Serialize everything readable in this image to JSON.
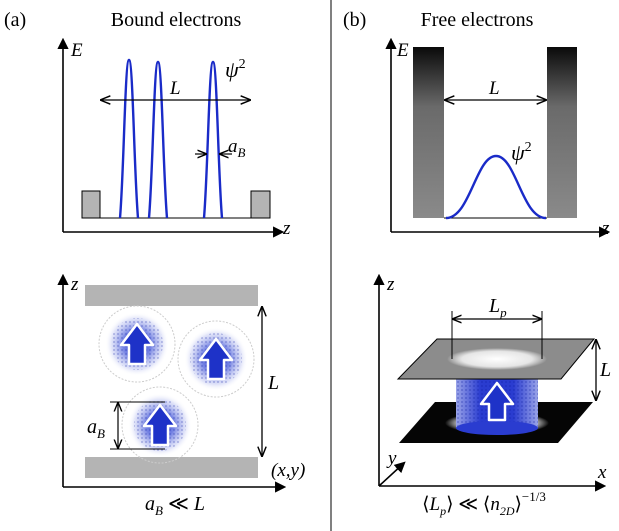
{
  "panel_a": {
    "label": "(a)",
    "title": "Bound electrons",
    "top": {
      "y_axis": "E",
      "x_axis": "z",
      "wavefunction": "ψ",
      "exponent": "2",
      "length": "L",
      "width_symbol": "a",
      "width_subscript": "B"
    },
    "bottom": {
      "y_axis": "z",
      "x_axis": "(x,y)",
      "length": "L",
      "radius_symbol": "a",
      "radius_subscript": "B",
      "relation_lhs": "a",
      "relation_lhs_sub": "B",
      "relation_op": " ≪ ",
      "relation_rhs": "L"
    }
  },
  "panel_b": {
    "label": "(b)",
    "title": "Free electrons",
    "top": {
      "y_axis": "E",
      "x_axis": "z",
      "wavefunction": "ψ",
      "exponent": "2",
      "length": "L"
    },
    "bottom": {
      "z_axis": "z",
      "y_axis": "y",
      "x_axis": "x",
      "length": "L",
      "puddle_symbol": "L",
      "puddle_subscript": "p",
      "relation_open": "⟨",
      "relation_lhs": "L",
      "relation_lhs_sub": "p",
      "relation_mid": "⟩ ≪ ⟨",
      "relation_rhs": "n",
      "relation_rhs_sub": "2D",
      "relation_close": "⟩",
      "relation_exp": "−1/3"
    }
  },
  "colors": {
    "curve": "#1a2bc8",
    "barrier": "#b4b4b4",
    "arrow_fill": "#1e32c8"
  }
}
